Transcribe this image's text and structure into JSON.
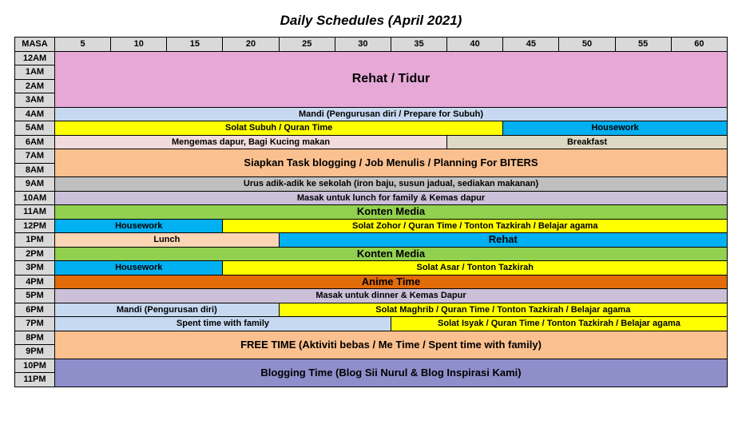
{
  "title": "Daily Schedules (April 2021)",
  "header": {
    "corner": "MASA",
    "minute_cols": [
      "5",
      "10",
      "15",
      "20",
      "25",
      "30",
      "35",
      "40",
      "45",
      "50",
      "55",
      "60"
    ]
  },
  "time_labels": [
    "12AM",
    "1AM",
    "2AM",
    "3AM",
    "4AM",
    "5AM",
    "6AM",
    "7AM",
    "8AM",
    "9AM",
    "10AM",
    "11AM",
    "12PM",
    "1PM",
    "2PM",
    "3PM",
    "4PM",
    "5PM",
    "6PM",
    "7PM",
    "8PM",
    "9PM",
    "10PM",
    "11PM"
  ],
  "colors": {
    "header_grey": "#d9d9d9",
    "pink": "#e6a8d7",
    "ltblue": "#c6d9f0",
    "yellow": "#ffff00",
    "blue": "#00b0f0",
    "tan": "#f2dcdb",
    "orange_lt": "#fac08f",
    "grey": "#bfbfbf",
    "mauve": "#ccc0d9",
    "green": "#92d050",
    "orange_dk": "#e26b0a",
    "peach": "#fcd5b4",
    "purple": "#8e8ecb",
    "sand": "#ddd9c4"
  },
  "rows": [
    {
      "time": "12AM",
      "blocks": [
        {
          "span": 12,
          "rowspan": 4,
          "color": "pink",
          "label": "Rehat / Tidur",
          "fontsize": 16
        }
      ]
    },
    {
      "time": "1AM",
      "append_to_prev": true
    },
    {
      "time": "2AM",
      "append_to_prev": true
    },
    {
      "time": "3AM",
      "append_to_prev": true
    },
    {
      "time": "4AM",
      "blocks": [
        {
          "span": 12,
          "color": "ltblue",
          "label": "Mandi (Pengurusan diri / Prepare for Subuh)",
          "fontsize": 11
        }
      ]
    },
    {
      "time": "5AM",
      "blocks": [
        {
          "span": 8,
          "color": "yellow",
          "label": "Solat Subuh / Quran Time",
          "fontsize": 11
        },
        {
          "span": 4,
          "color": "blue",
          "label": "Housework",
          "fontsize": 11
        }
      ]
    },
    {
      "time": "6AM",
      "blocks": [
        {
          "span": 7,
          "color": "tan",
          "label": "Mengemas dapur, Bagi Kucing makan",
          "fontsize": 11
        },
        {
          "span": 5,
          "color": "sand",
          "label": "Breakfast",
          "fontsize": 11
        }
      ]
    },
    {
      "time": "7AM",
      "blocks": [
        {
          "span": 12,
          "rowspan": 2,
          "color": "orange_lt",
          "label": "Siapkan Task blogging / Job Menulis / Planning For BITERS",
          "fontsize": 13
        }
      ]
    },
    {
      "time": "8AM",
      "append_to_prev": true
    },
    {
      "time": "9AM",
      "blocks": [
        {
          "span": 12,
          "color": "grey",
          "label": "Urus adik-adik ke sekolah (iron baju, susun jadual, sediakan makanan)",
          "fontsize": 11
        }
      ]
    },
    {
      "time": "10AM",
      "blocks": [
        {
          "span": 12,
          "color": "mauve",
          "label": "Masak untuk lunch for family & Kemas dapur",
          "fontsize": 11
        }
      ]
    },
    {
      "time": "11AM",
      "blocks": [
        {
          "span": 12,
          "color": "green",
          "label": "Konten Media",
          "fontsize": 13
        }
      ]
    },
    {
      "time": "12PM",
      "blocks": [
        {
          "span": 3,
          "color": "blue",
          "label": "Housework",
          "fontsize": 11
        },
        {
          "span": 9,
          "color": "yellow",
          "label": "Solat Zohor / Quran Time / Tonton Tazkirah / Belajar agama",
          "fontsize": 11
        }
      ]
    },
    {
      "time": "1PM",
      "blocks": [
        {
          "span": 4,
          "color": "peach",
          "label": "Lunch",
          "fontsize": 11
        },
        {
          "span": 8,
          "rowspan": 2,
          "color": "blue",
          "label": "Rehat",
          "fontsize": 13
        }
      ]
    },
    {
      "time": "2PM",
      "blocks": [
        {
          "span": 4,
          "color": "green",
          "label": "Konten Media",
          "fontsize": 13
        }
      ],
      "partial_continuation": true
    },
    {
      "time": "3PM",
      "blocks": [
        {
          "span": 3,
          "color": "blue",
          "label": "Housework",
          "fontsize": 11
        },
        {
          "span": 9,
          "color": "yellow",
          "label": "Solat Asar / Tonton Tazkirah",
          "fontsize": 11
        }
      ]
    },
    {
      "time": "4PM",
      "blocks": [
        {
          "span": 12,
          "color": "orange_dk",
          "label": "Anime Time",
          "fontsize": 13
        }
      ]
    },
    {
      "time": "5PM",
      "blocks": [
        {
          "span": 12,
          "color": "mauve",
          "label": "Masak untuk dinner & Kemas Dapur",
          "fontsize": 11
        }
      ]
    },
    {
      "time": "6PM",
      "blocks": [
        {
          "span": 4,
          "color": "ltblue",
          "label": "Mandi (Pengurusan diri)",
          "fontsize": 11
        },
        {
          "span": 8,
          "color": "yellow",
          "label": "Solat Maghrib / Quran Time / Tonton Tazkirah / Belajar agama",
          "fontsize": 11
        }
      ]
    },
    {
      "time": "7PM",
      "blocks": [
        {
          "span": 6,
          "color": "ltblue",
          "label": "Spent time with family",
          "fontsize": 11
        },
        {
          "span": 6,
          "color": "yellow",
          "label": "Solat Isyak / Quran Time / Tonton Tazkirah / Belajar agama",
          "fontsize": 11
        }
      ]
    },
    {
      "time": "8PM",
      "blocks": [
        {
          "span": 12,
          "rowspan": 2,
          "color": "orange_lt",
          "label": "FREE TIME (Aktiviti bebas / Me Time / Spent time with family)",
          "fontsize": 13
        }
      ]
    },
    {
      "time": "9PM",
      "append_to_prev": true
    },
    {
      "time": "10PM",
      "blocks": [
        {
          "span": 12,
          "rowspan": 2,
          "color": "purple",
          "label": "Blogging Time (Blog Sii Nurul & Blog Inspirasi Kami)",
          "fontsize": 13
        }
      ]
    },
    {
      "time": "11PM",
      "append_to_prev": true
    }
  ],
  "_row2pm_note": "row 2PM: first 4 cols are Konten Media (green), remaining 8 are the continuation of 1PM Rehat rowspan — but screenshot shows a full-width green Konten Media row at 2PM with Rehat only on 1PM. Override below."
}
